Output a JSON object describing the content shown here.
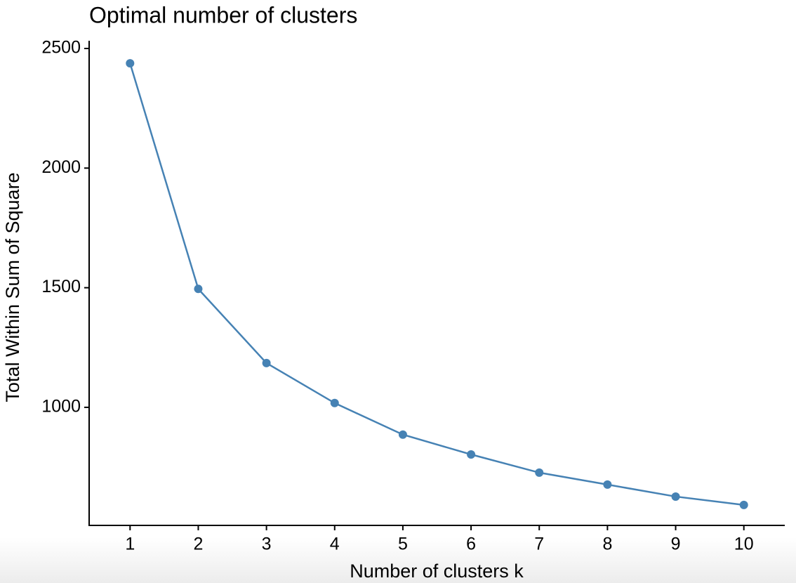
{
  "chart_data": {
    "type": "line",
    "title": "Optimal number of clusters",
    "x_label": "Number of clusters k",
    "y_label": "Total Within Sum of Square",
    "x": [
      1,
      2,
      3,
      4,
      5,
      6,
      7,
      8,
      9,
      10
    ],
    "series": [
      {
        "name": "Total Within Sum of Square",
        "color": "#4682b4",
        "values": [
          2438,
          1495,
          1185,
          1018,
          886,
          803,
          727,
          677,
          627,
          592
        ]
      }
    ],
    "xlim": [
      0.4,
      10.6
    ],
    "xticks": [
      1,
      2,
      3,
      4,
      5,
      6,
      7,
      8,
      9,
      10
    ],
    "ylim": [
      500,
      2530
    ],
    "yticks": [
      1000,
      1500,
      2000,
      2500
    ],
    "grid": false
  }
}
